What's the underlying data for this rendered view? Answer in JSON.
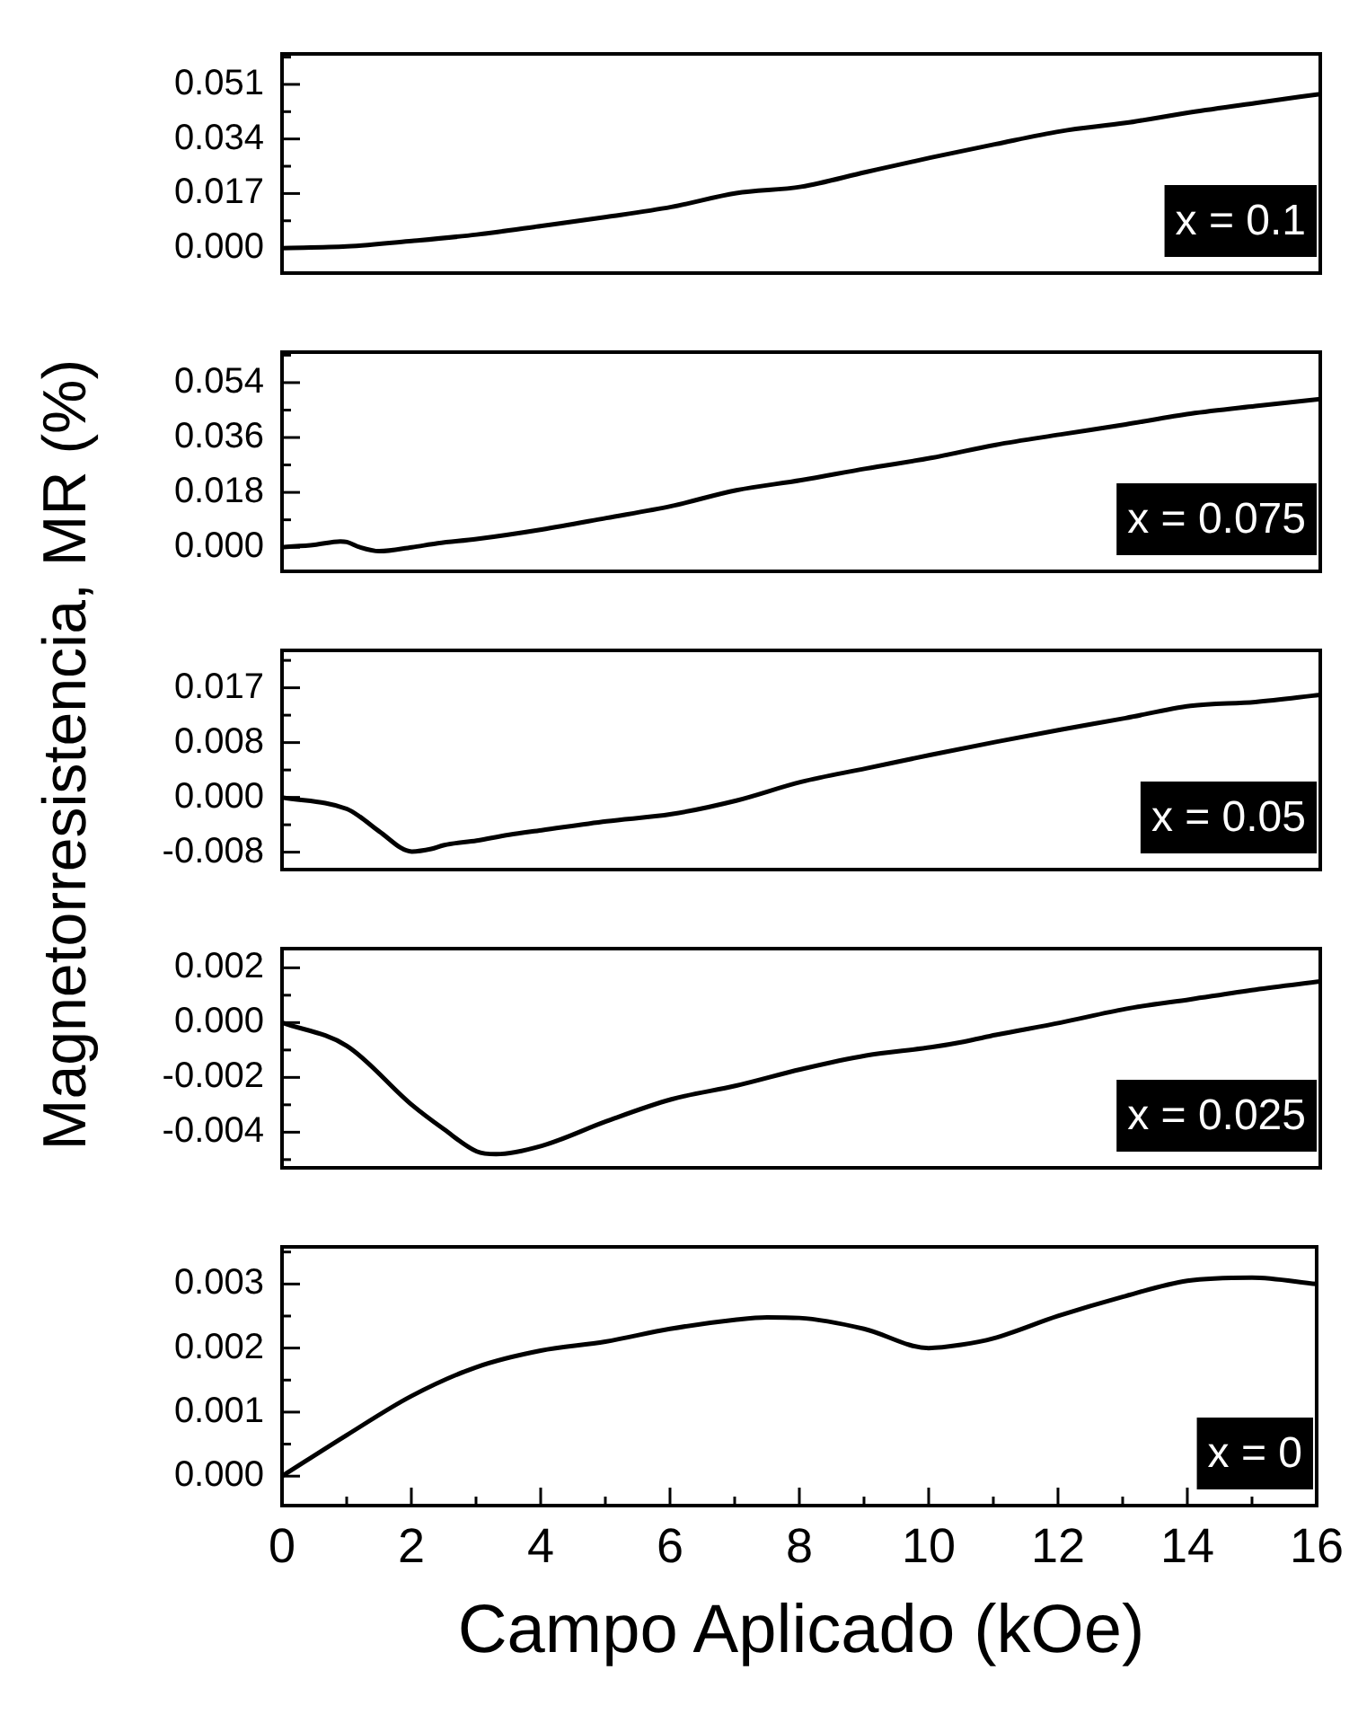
{
  "chart_data": [
    {
      "type": "line",
      "ylabel": "Magnetorresistencia, MR (%)",
      "annotations": [
        "x = 0.1"
      ],
      "color": "#000000",
      "x": [
        0,
        1,
        2,
        3,
        4,
        5,
        6,
        7,
        8,
        9,
        10,
        11,
        12,
        13,
        14,
        15,
        16
      ],
      "values": [
        0,
        0.0005,
        0.0022,
        0.0042,
        0.0069,
        0.0097,
        0.0128,
        0.0171,
        0.0191,
        0.0237,
        0.0282,
        0.0324,
        0.0364,
        0.039,
        0.0423,
        0.0452,
        0.048
      ],
      "xlim": [
        0,
        16
      ],
      "xticks": [
        0,
        2,
        4,
        6,
        8,
        10,
        12,
        14,
        16
      ],
      "ylim": [
        -0.0078,
        0.0605
      ],
      "yticks": [
        {
          "value": 0,
          "label": "0.000"
        },
        0.017,
        0.034,
        0.051
      ],
      "tick_labels": "y",
      "grid": false,
      "legend": false,
      "marker": "none",
      "line_style": "solid"
    },
    {
      "type": "line",
      "annotations": [
        "x = 0.075"
      ],
      "color": "#000000",
      "x": [
        0,
        0.5,
        0.9,
        1.0,
        1.2,
        1.5,
        2,
        2.4,
        3,
        4,
        5,
        6,
        7,
        8,
        9,
        10,
        11,
        12,
        13,
        14,
        15,
        16
      ],
      "values": [
        0,
        0.0008,
        0.0019,
        0.0017,
        0,
        -0.0013,
        0,
        0.0013,
        0.0027,
        0.0058,
        0.0096,
        0.0135,
        0.0187,
        0.022,
        0.0258,
        0.0293,
        0.0336,
        0.037,
        0.0403,
        0.0438,
        0.0463,
        0.0486
      ],
      "xlim": [
        0,
        16
      ],
      "xticks": [
        0,
        2,
        4,
        6,
        8,
        10,
        12,
        14,
        16
      ],
      "ylim": [
        -0.0079,
        0.064
      ],
      "yticks": [
        {
          "value": 0,
          "label": "0.000"
        },
        0.018,
        0.036,
        0.054
      ],
      "tick_labels": "y",
      "grid": false,
      "legend": false,
      "marker": "none",
      "line_style": "solid"
    },
    {
      "type": "line",
      "annotations": [
        "x = 0.05"
      ],
      "color": "#000000",
      "x": [
        0,
        1,
        1.2,
        1.5,
        2,
        2.3,
        2.5,
        3,
        3.5,
        4,
        5,
        6,
        7,
        8,
        9,
        10,
        11,
        12,
        13,
        14,
        15,
        16
      ],
      "values": [
        0,
        -0.0018,
        -0.003,
        -0.0053,
        -0.0084,
        -0.008,
        -0.0074,
        -0.0067,
        -0.0058,
        -0.0051,
        -0.0037,
        -0.0026,
        -0.0005,
        0.0024,
        0.0045,
        0.0066,
        0.0086,
        0.0105,
        0.0123,
        0.0142,
        0.0148,
        0.0159
      ],
      "xlim": [
        0,
        16
      ],
      "xticks": [
        0,
        2,
        4,
        6,
        8,
        10,
        12,
        14,
        16
      ],
      "ylim": [
        -0.0112,
        0.0228
      ],
      "yticks": [
        {
          "value": -0.0085,
          "label": "-0.008"
        },
        {
          "value": 0,
          "label": "0.000"
        },
        {
          "value": 0.0085,
          "label": "0.008"
        },
        0.017
      ],
      "tick_labels": "y",
      "grid": false,
      "legend": false,
      "marker": "none",
      "line_style": "solid"
    },
    {
      "type": "line",
      "annotations": [
        "x = 0.025"
      ],
      "color": "#000000",
      "x": [
        0,
        1,
        2,
        2.5,
        3,
        3.3,
        4,
        5,
        6,
        7,
        8,
        9,
        10,
        10.5,
        11,
        12,
        13,
        14,
        15,
        16
      ],
      "values": [
        0,
        -0.00085,
        -0.003,
        -0.0039,
        -0.0047,
        -0.0048,
        -0.0045,
        -0.0036,
        -0.0028,
        -0.0023,
        -0.0017,
        -0.0012,
        -0.0009,
        -0.0007,
        -0.00045,
        0,
        0.0005,
        0.00085,
        0.0012,
        0.0015
      ],
      "xlim": [
        0,
        16
      ],
      "xticks": [
        0,
        2,
        4,
        6,
        8,
        10,
        12,
        14,
        16
      ],
      "ylim": [
        -0.0053,
        0.0027
      ],
      "yticks": [
        -0.004,
        -0.002,
        {
          "value": 0,
          "label": "0.000"
        },
        0.002
      ],
      "tick_labels": "y",
      "grid": false,
      "legend": false,
      "marker": "none",
      "line_style": "solid"
    },
    {
      "type": "line",
      "xlabel": "Campo Aplicado (kOe)",
      "annotations": [
        "x = 0"
      ],
      "color": "#000000",
      "x": [
        0,
        1,
        2,
        3,
        4,
        5,
        6,
        7,
        7.5,
        8,
        9,
        10,
        10.5,
        11,
        12,
        13,
        14,
        15,
        16
      ],
      "values": [
        0,
        0.00064,
        0.00125,
        0.0017,
        0.00196,
        0.0021,
        0.0023,
        0.00244,
        0.00248,
        0.00247,
        0.0023,
        0.002,
        0.00205,
        0.00215,
        0.0025,
        0.0028,
        0.00305,
        0.0031,
        0.003
      ],
      "xlim": [
        0,
        16
      ],
      "xticks": [
        0,
        2,
        4,
        6,
        8,
        10,
        12,
        14,
        16
      ],
      "ylim": [
        -0.00046,
        0.00358
      ],
      "yticks": [
        {
          "value": 0,
          "label": "0.000"
        },
        0.001,
        0.002,
        0.003
      ],
      "grid": false,
      "legend": false,
      "marker": "none",
      "line_style": "solid"
    }
  ]
}
